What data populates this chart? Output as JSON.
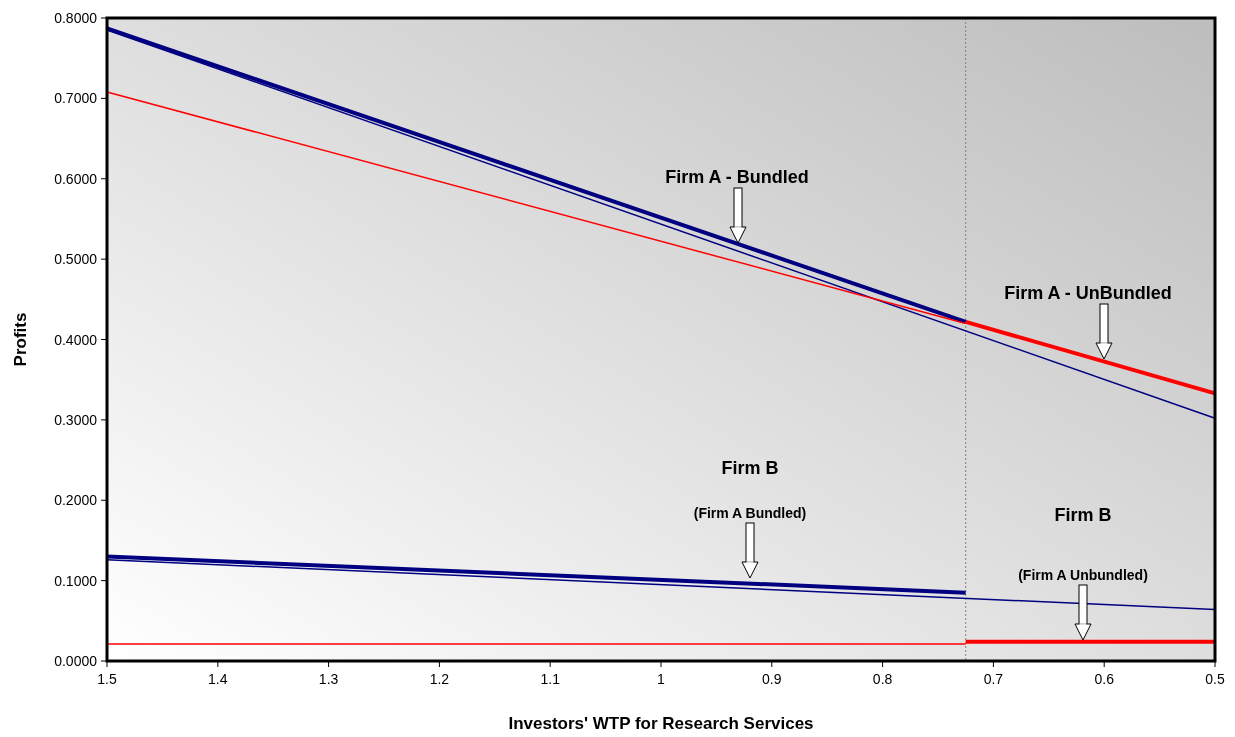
{
  "chart_data": {
    "type": "line",
    "xlabel": "Investors' WTP for Research Services",
    "ylabel": "Profits",
    "xlim": [
      1.5,
      0.5
    ],
    "xticks": [
      1.5,
      1.4,
      1.3,
      1.2,
      1.1,
      1,
      0.9,
      0.8,
      0.7,
      0.6,
      0.5
    ],
    "ylim": [
      0,
      0.8
    ],
    "yticks": [
      {
        "value": 0,
        "label": "0.0000"
      },
      {
        "value": 0.1,
        "label": "0.1000"
      },
      {
        "value": 0.2,
        "label": "0.2000"
      },
      {
        "value": 0.3,
        "label": "0.3000"
      },
      {
        "value": 0.4,
        "label": "0.4000"
      },
      {
        "value": 0.5,
        "label": "0.5000"
      },
      {
        "value": 0.6,
        "label": "0.6000"
      },
      {
        "value": 0.7,
        "label": "0.7000"
      },
      {
        "value": 0.8,
        "label": "0.8000"
      }
    ],
    "grid": false,
    "marker": "none",
    "line_style": "solid",
    "series": [
      {
        "color": "#000080",
        "x": [
          1.5,
          0.725
        ],
        "values": [
          0.787,
          0.422
        ]
      },
      {
        "color": "#000080",
        "x": [
          1.5,
          0.5
        ],
        "values": [
          0.785,
          0.302
        ]
      },
      {
        "color": "#ff0000",
        "x": [
          1.5,
          0.725
        ],
        "values": [
          0.708,
          0.42
        ]
      },
      {
        "color": "#ff0000",
        "x": [
          0.725,
          0.5
        ],
        "values": [
          0.422,
          0.333
        ]
      },
      {
        "color": "#000080",
        "x": [
          1.5,
          0.725
        ],
        "values": [
          0.13,
          0.085
        ]
      },
      {
        "color": "#000080",
        "x": [
          1.5,
          0.5
        ],
        "values": [
          0.126,
          0.064
        ]
      },
      {
        "color": "#ff0000",
        "x": [
          1.5,
          0.725
        ],
        "values": [
          0.021,
          0.021
        ]
      },
      {
        "color": "#ff0000",
        "x": [
          0.725,
          0.5
        ],
        "values": [
          0.024,
          0.024
        ]
      }
    ],
    "ref_lines": [
      {
        "axis": "x",
        "value": 0.725,
        "label": null,
        "color": "#808080",
        "line_style": "dotted"
      }
    ],
    "annotations": [
      "Firm A - Bundled",
      "Firm A - UnBundled",
      "Firm B",
      "(Firm A Bundled)",
      "Firm B",
      "(Firm A Unbundled)"
    ]
  }
}
